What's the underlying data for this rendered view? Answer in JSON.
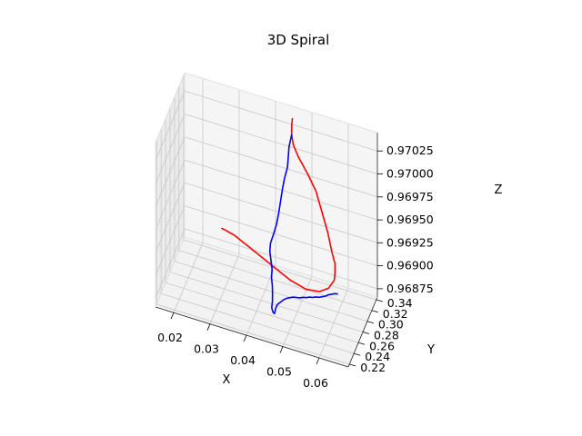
{
  "chart_data": {
    "type": "line",
    "projection": "3d",
    "title": "3D Spiral",
    "xlabel": "X",
    "ylabel": "Y",
    "zlabel": "Z",
    "xlim": [
      0.015,
      0.068
    ],
    "ylim": [
      0.215,
      0.345
    ],
    "zlim": [
      0.96866,
      0.97045
    ],
    "x_ticks": [
      "0.02",
      "0.03",
      "0.04",
      "0.05",
      "0.06"
    ],
    "y_ticks": [
      "0.22",
      "0.24",
      "0.26",
      "0.28",
      "0.30",
      "0.32",
      "0.34"
    ],
    "z_ticks": [
      "0.96875",
      "0.96900",
      "0.96925",
      "0.96950",
      "0.96975",
      "0.97000",
      "0.97025"
    ],
    "grid": true,
    "series": [
      {
        "color": "#ff0000",
        "points": [
          [
            0.0452,
            0.3362,
            0.97038
          ],
          [
            0.045,
            0.336,
            0.9703
          ],
          [
            0.045,
            0.3358,
            0.9702
          ],
          [
            0.0455,
            0.335,
            0.9701
          ],
          [
            0.047,
            0.333,
            0.97
          ],
          [
            0.05,
            0.325,
            0.9699
          ],
          [
            0.053,
            0.315,
            0.9698
          ],
          [
            0.0555,
            0.3,
            0.9697
          ],
          [
            0.058,
            0.285,
            0.9696
          ],
          [
            0.06,
            0.272,
            0.96948
          ],
          [
            0.0612,
            0.266,
            0.9694
          ],
          [
            0.0612,
            0.266,
            0.9693
          ],
          [
            0.061,
            0.266,
            0.96922
          ],
          [
            0.0595,
            0.265,
            0.96912
          ],
          [
            0.057,
            0.2655,
            0.96905
          ],
          [
            0.053,
            0.27,
            0.969
          ],
          [
            0.048,
            0.28,
            0.96898
          ],
          [
            0.042,
            0.295,
            0.96898
          ],
          [
            0.036,
            0.31,
            0.96898
          ],
          [
            0.03,
            0.325,
            0.96898
          ],
          [
            0.0272,
            0.329,
            0.96898
          ],
          [
            0.026,
            0.33,
            0.96898
          ]
        ]
      },
      {
        "color": "#0000ff",
        "points": [
          [
            0.045,
            0.336,
            0.9702
          ],
          [
            0.0445,
            0.332,
            0.97008
          ],
          [
            0.0445,
            0.329,
            0.97
          ],
          [
            0.0445,
            0.325,
            0.9699
          ],
          [
            0.044,
            0.32,
            0.9698
          ],
          [
            0.0437,
            0.315,
            0.9697
          ],
          [
            0.0435,
            0.31,
            0.9696
          ],
          [
            0.0433,
            0.305,
            0.9695
          ],
          [
            0.043,
            0.3,
            0.9694
          ],
          [
            0.0425,
            0.295,
            0.96932
          ],
          [
            0.042,
            0.29,
            0.96925
          ],
          [
            0.042,
            0.287,
            0.96918
          ],
          [
            0.0425,
            0.284,
            0.9691
          ],
          [
            0.043,
            0.281,
            0.96903
          ],
          [
            0.043,
            0.278,
            0.96896
          ],
          [
            0.0435,
            0.274,
            0.9689
          ],
          [
            0.0438,
            0.27,
            0.96884
          ],
          [
            0.044,
            0.266,
            0.96878
          ],
          [
            0.044,
            0.263,
            0.96873
          ],
          [
            0.0443,
            0.261,
            0.96872
          ],
          [
            0.0446,
            0.26,
            0.9687
          ],
          [
            0.045,
            0.259,
            0.9687
          ],
          [
            0.0452,
            0.258,
            0.96873
          ],
          [
            0.0455,
            0.257,
            0.96878
          ],
          [
            0.046,
            0.256,
            0.96883
          ],
          [
            0.047,
            0.254,
            0.96888
          ],
          [
            0.048,
            0.252,
            0.96893
          ],
          [
            0.049,
            0.25,
            0.96897
          ],
          [
            0.05,
            0.248,
            0.969
          ],
          [
            0.051,
            0.246,
            0.96903
          ],
          [
            0.052,
            0.244,
            0.96905
          ],
          [
            0.053,
            0.242,
            0.96907
          ],
          [
            0.054,
            0.24,
            0.9691
          ],
          [
            0.055,
            0.238,
            0.96912
          ],
          [
            0.056,
            0.236,
            0.96915
          ],
          [
            0.057,
            0.234,
            0.96917
          ],
          [
            0.058,
            0.232,
            0.9692
          ],
          [
            0.059,
            0.23,
            0.96922
          ],
          [
            0.06,
            0.228,
            0.96925
          ],
          [
            0.061,
            0.226,
            0.96928
          ],
          [
            0.062,
            0.224,
            0.96932
          ],
          [
            0.063,
            0.222,
            0.96935
          ],
          [
            0.064,
            0.22,
            0.96938
          ],
          [
            0.065,
            0.218,
            0.9694
          ]
        ]
      }
    ]
  }
}
